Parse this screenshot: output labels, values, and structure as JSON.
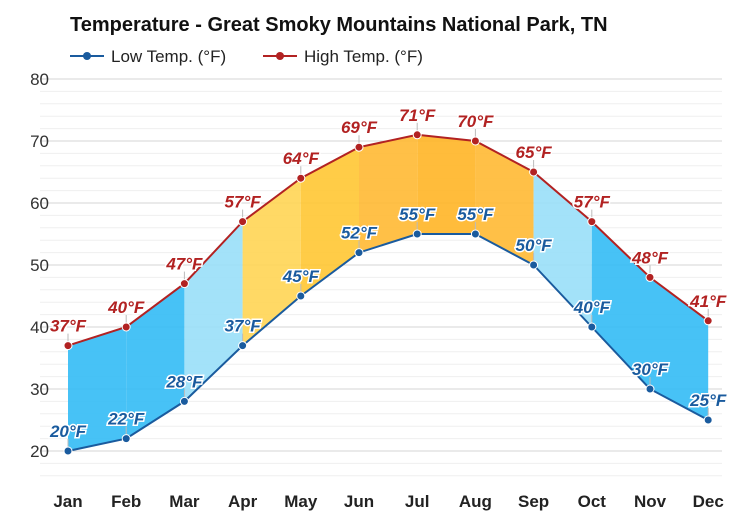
{
  "chart_data": {
    "type": "line",
    "title": "Temperature - Great Smoky Mountains National Park, TN",
    "categories": [
      "Jan",
      "Feb",
      "Mar",
      "Apr",
      "May",
      "Jun",
      "Jul",
      "Aug",
      "Sep",
      "Oct",
      "Nov",
      "Dec"
    ],
    "series": [
      {
        "name": "Low Temp. (°F)",
        "color": "#1a5b9e",
        "values": [
          20,
          22,
          28,
          37,
          45,
          52,
          55,
          55,
          50,
          40,
          30,
          25
        ],
        "labels": [
          "20°F",
          "22°F",
          "28°F",
          "37°F",
          "45°F",
          "52°F",
          "55°F",
          "55°F",
          "50°F",
          "40°F",
          "30°F",
          "25°F"
        ]
      },
      {
        "name": "High Temp. (°F)",
        "color": "#b22222",
        "values": [
          37,
          40,
          47,
          57,
          64,
          69,
          71,
          70,
          65,
          57,
          48,
          41
        ],
        "labels": [
          "37°F",
          "40°F",
          "47°F",
          "57°F",
          "64°F",
          "69°F",
          "71°F",
          "70°F",
          "65°F",
          "57°F",
          "48°F",
          "41°F"
        ]
      }
    ],
    "band_colors": [
      "#33bbf5",
      "#33bbf5",
      "#99dff8",
      "#ffd554",
      "#ffc633",
      "#ffb933",
      "#ffb526",
      "#ffb933",
      "#99dff8",
      "#33bbf5",
      "#33bbf5",
      "#33bbf5"
    ],
    "ylim": [
      15,
      80
    ],
    "yticks": [
      20,
      30,
      40,
      50,
      60,
      70,
      80
    ],
    "grid": true,
    "legend": "top-left"
  }
}
